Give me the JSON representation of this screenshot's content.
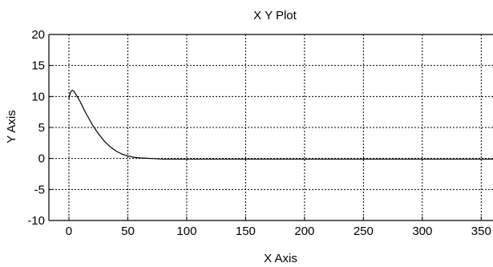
{
  "chart_data": {
    "type": "line",
    "title": "X Y Plot",
    "xlabel": "X Axis",
    "ylabel": "Y Axis",
    "xlim": [
      -17,
      360
    ],
    "ylim": [
      -10,
      20
    ],
    "xticks": [
      0,
      50,
      100,
      150,
      200,
      250,
      300,
      350
    ],
    "yticks": [
      -10,
      -5,
      0,
      5,
      10,
      15,
      20
    ],
    "xtick_labels": [
      "0",
      "50",
      "100",
      "150",
      "200",
      "250",
      "300",
      "350"
    ],
    "ytick_labels": [
      "-10",
      "-5",
      "0",
      "5",
      "10",
      "15",
      "20"
    ],
    "grid": true,
    "grid_style": "dotted",
    "legend": null,
    "series": [
      {
        "color": "#000000",
        "x": [
          0,
          1,
          2,
          3,
          4,
          5,
          6,
          8,
          10,
          12,
          15,
          18,
          20,
          25,
          30,
          35,
          40,
          45,
          50,
          55,
          60,
          65,
          70,
          80,
          100,
          150,
          200,
          250,
          300,
          350,
          360
        ],
        "y": [
          9.6,
          10.5,
          10.9,
          11.0,
          10.9,
          10.6,
          10.3,
          9.7,
          9.0,
          8.2,
          7.1,
          6.1,
          5.4,
          4.0,
          2.8,
          1.9,
          1.2,
          0.7,
          0.4,
          0.2,
          0.1,
          0.05,
          0.0,
          -0.1,
          -0.1,
          -0.1,
          -0.1,
          -0.1,
          -0.1,
          -0.1,
          -0.1
        ]
      }
    ]
  },
  "colors": {
    "axis": "#000000",
    "grid": "#000000",
    "line": "#000000",
    "background": "#ffffff"
  }
}
